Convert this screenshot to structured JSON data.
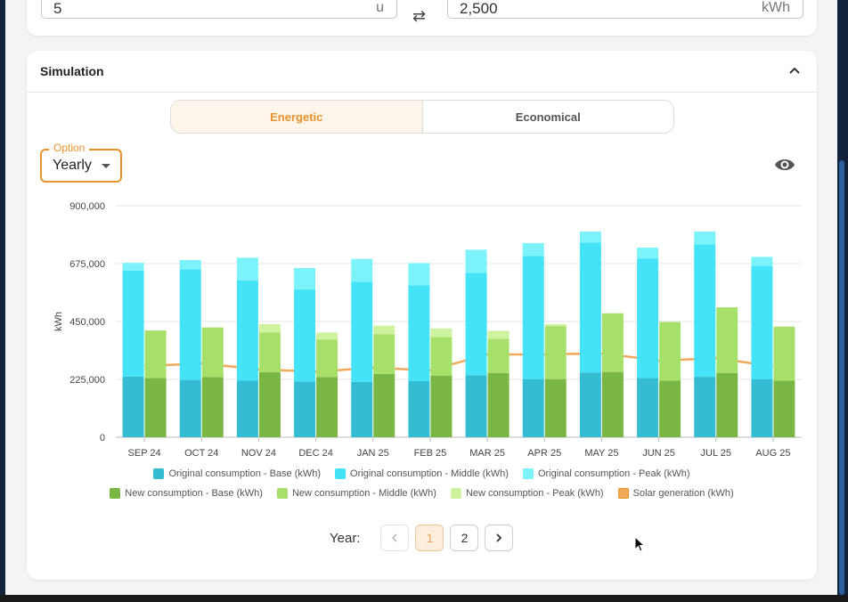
{
  "inputs": {
    "left_value": "5",
    "left_unit": "u",
    "right_value": "2,500",
    "right_unit": "kWh"
  },
  "simulation": {
    "title": "Simulation",
    "tabs": {
      "energetic": "Energetic",
      "economical": "Economical"
    },
    "option_label": "Option",
    "option_value": "Yearly"
  },
  "legend": [
    {
      "label": "Original consumption - Base (kWh)",
      "color": "#35bcd2"
    },
    {
      "label": "Original consumption - Middle (kWh)",
      "color": "#45e3f8"
    },
    {
      "label": "Original consumption - Peak (kWh)",
      "color": "#7cf3fa"
    },
    {
      "label": "New consumption - Base (kWh)",
      "color": "#7ab644"
    },
    {
      "label": "New consumption - Middle (kWh)",
      "color": "#a6e06b"
    },
    {
      "label": "New consumption - Peak (kWh)",
      "color": "#cff29e"
    },
    {
      "label": "Solar generation (kWh)",
      "color": "#f2a95a"
    }
  ],
  "pagination": {
    "label": "Year:",
    "pages": [
      "1",
      "2"
    ],
    "current": "1"
  },
  "chart_data": {
    "type": "bar",
    "ylabel": "kWh",
    "ylim": [
      0,
      900000
    ],
    "yticks": [
      "0",
      "225,000",
      "450,000",
      "675,000",
      "900,000"
    ],
    "categories": [
      "SEP 24",
      "OCT 24",
      "NOV 24",
      "DEC 24",
      "JAN 25",
      "FEB 25",
      "MAR 25",
      "APR 25",
      "MAY 25",
      "JUN 25",
      "JUL 25",
      "AUG 25"
    ],
    "original": {
      "base": [
        236000,
        223000,
        220000,
        217000,
        215000,
        218000,
        241000,
        226000,
        252000,
        230000,
        235000,
        225000
      ],
      "middle": [
        412000,
        430000,
        390000,
        358000,
        390000,
        372000,
        398000,
        479000,
        505000,
        464000,
        515000,
        441000
      ],
      "peak": [
        30000,
        36000,
        88000,
        83000,
        88000,
        87000,
        90000,
        50000,
        43000,
        43000,
        50000,
        35000
      ]
    },
    "new": {
      "base": [
        230000,
        234000,
        253000,
        234000,
        246000,
        239000,
        250000,
        226000,
        254000,
        220000,
        250000,
        220000
      ],
      "middle": [
        185000,
        193000,
        154000,
        145000,
        155000,
        151000,
        133000,
        206000,
        228000,
        228000,
        255000,
        210000
      ],
      "peak": [
        0,
        0,
        33000,
        28000,
        33000,
        33000,
        31000,
        8000,
        0,
        0,
        0,
        0
      ]
    },
    "solar": [
      277000,
      287000,
      264000,
      255000,
      270000,
      260000,
      322000,
      322000,
      326000,
      298000,
      307000,
      276000
    ]
  }
}
